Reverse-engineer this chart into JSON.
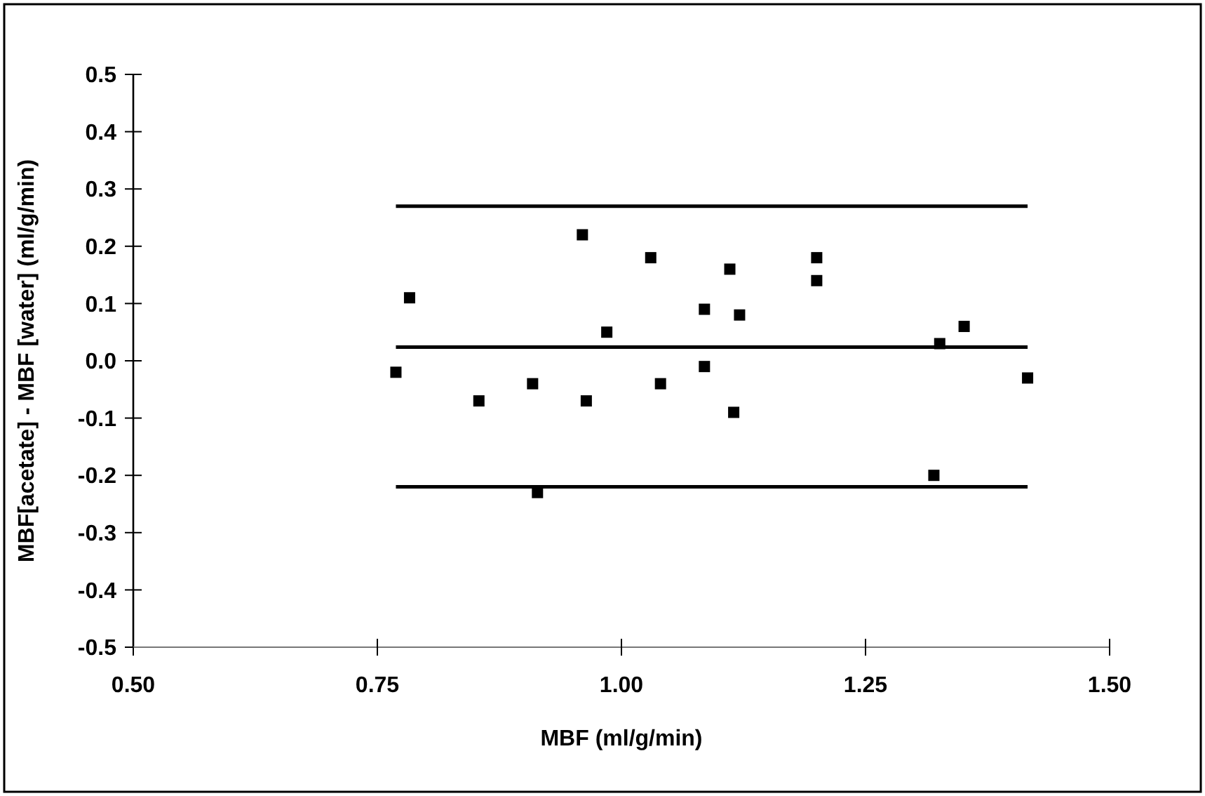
{
  "chart_data": {
    "type": "scatter",
    "xlabel": "MBF (ml/g/min)",
    "ylabel": "MBF[acetate] - MBF [water] (ml/g/min)",
    "x": [
      0.769,
      0.783,
      0.854,
      0.909,
      0.914,
      0.96,
      0.964,
      0.985,
      1.03,
      1.04,
      1.085,
      1.085,
      1.111,
      1.115,
      1.121,
      1.2,
      1.2,
      1.32,
      1.326,
      1.351,
      1.416
    ],
    "series": [
      {
        "color": "#000000",
        "values": [
          -0.02,
          0.11,
          -0.07,
          -0.04,
          -0.23,
          0.22,
          -0.07,
          0.05,
          0.18,
          -0.04,
          0.09,
          -0.01,
          0.16,
          -0.09,
          0.08,
          0.18,
          0.14,
          -0.2,
          0.03,
          0.06,
          -0.03
        ]
      }
    ],
    "marker": "square",
    "grid": false,
    "xlim": [
      0.5,
      1.5
    ],
    "xticks": [
      {
        "value": 0.5,
        "label": "0.50"
      },
      {
        "value": 0.75,
        "label": "0.75"
      },
      {
        "value": 1,
        "label": "1.00"
      },
      {
        "value": 1.25,
        "label": "1.25"
      },
      {
        "value": 1.5,
        "label": "1.50"
      }
    ],
    "ylim": [
      -0.5,
      0.5
    ],
    "yticks": [
      {
        "value": -0.5,
        "label": "-0.5"
      },
      {
        "value": -0.4,
        "label": "-0.4"
      },
      {
        "value": -0.3,
        "label": "-0.3"
      },
      {
        "value": -0.2,
        "label": "-0.2"
      },
      {
        "value": -0.1,
        "label": "-0.1"
      },
      {
        "value": 0,
        "label": "0.0"
      },
      {
        "value": 0.1,
        "label": "0.1"
      },
      {
        "value": 0.2,
        "label": "0.2"
      },
      {
        "value": 0.3,
        "label": "0.3"
      },
      {
        "value": 0.4,
        "label": "0.4"
      },
      {
        "value": 0.5,
        "label": "0.5"
      }
    ],
    "ref_lines": [
      {
        "axis": "y",
        "value": 0.27,
        "color": "#000000"
      },
      {
        "axis": "y",
        "value": 0.024,
        "color": "#000000"
      },
      {
        "axis": "y",
        "value": -0.22,
        "color": "#000000"
      }
    ]
  }
}
